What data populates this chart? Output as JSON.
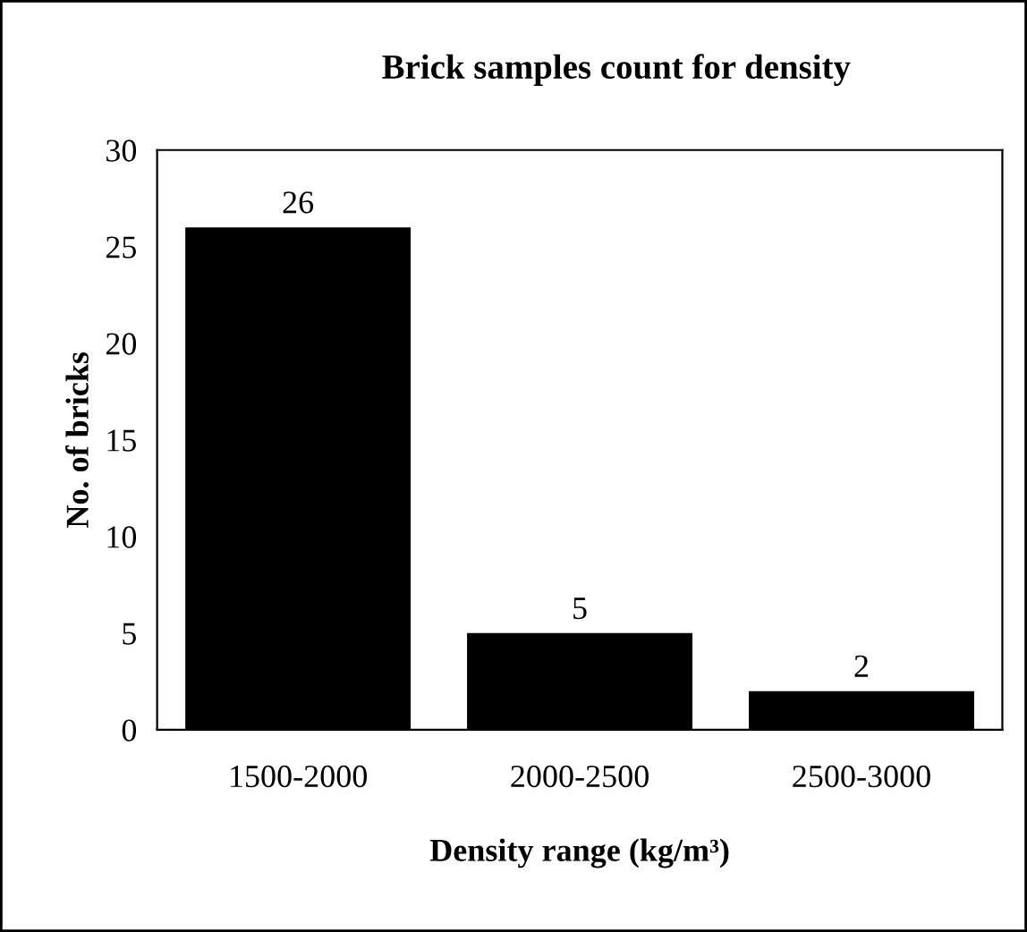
{
  "chart_data": {
    "type": "bar",
    "title": "Brick samples count for density",
    "xlabel": "Density range (kg/m³)",
    "ylabel": "No. of bricks",
    "categories": [
      "1500-2000",
      "2000-2500",
      "2500-3000"
    ],
    "values": [
      26,
      5,
      2
    ],
    "color": "#000000",
    "ylim": [
      0,
      30
    ],
    "yticks": [
      0,
      5,
      10,
      15,
      20,
      25,
      30
    ],
    "grid": false,
    "data_labels": true
  }
}
